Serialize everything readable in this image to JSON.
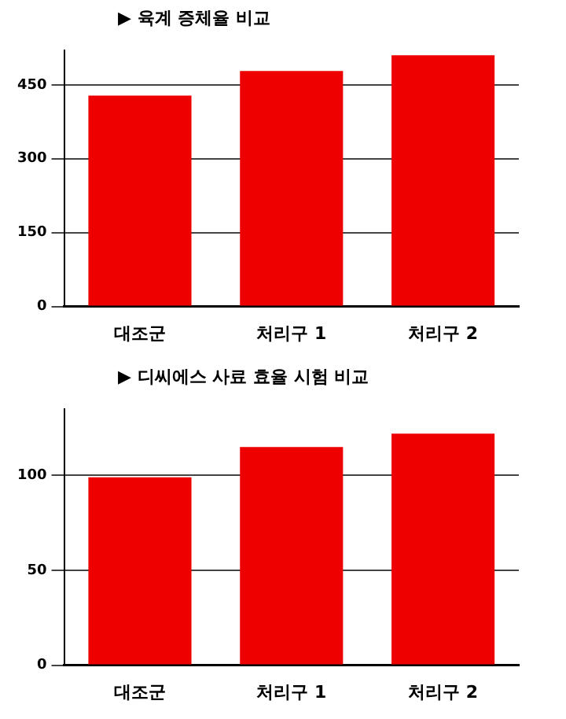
{
  "chart_data": [
    {
      "type": "bar",
      "title": "▶ 육계 증체율 비교",
      "categories": [
        "대조군",
        "처리구 1",
        "처리구 2"
      ],
      "values": [
        428,
        478,
        510
      ],
      "color": "#ee0000",
      "ylim": [
        0,
        520
      ],
      "yticks": [
        0,
        150,
        300,
        450
      ],
      "grid": "y",
      "legend": false
    },
    {
      "type": "bar",
      "title": "▶ 디씨에스 사료 효율 시험 비교",
      "categories": [
        "대조군",
        "처리구 1",
        "처리구 2"
      ],
      "values": [
        99,
        115,
        122
      ],
      "color": "#ee0000",
      "ylim": [
        0,
        135
      ],
      "yticks": [
        0,
        50,
        100
      ],
      "grid": "y",
      "legend": false
    }
  ]
}
